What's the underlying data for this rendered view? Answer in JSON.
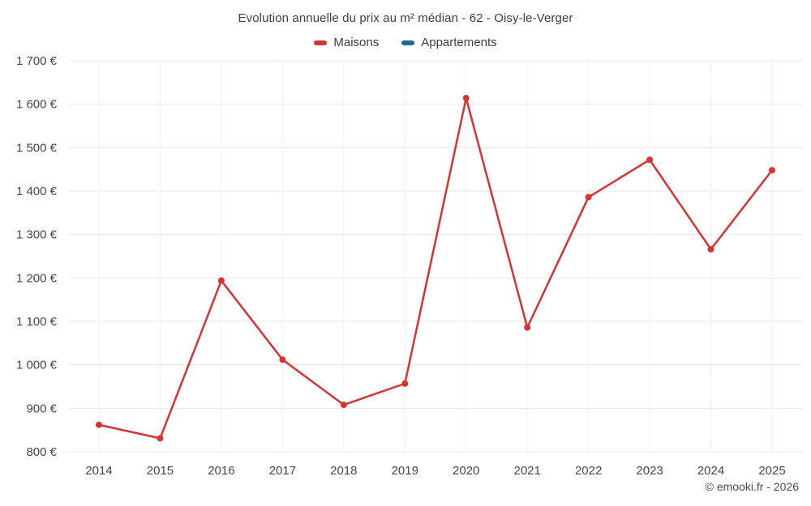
{
  "title": "Evolution annuelle du prix au m² médian - 62 - Oisy-le-Verger",
  "legend": [
    {
      "label": "Maisons",
      "color": "#d63333"
    },
    {
      "label": "Appartements",
      "color": "#166e96"
    }
  ],
  "copyright": "© emooki.fr - 2026",
  "chart_data": {
    "type": "line",
    "title": "Evolution annuelle du prix au m² médian - 62 - Oisy-le-Verger",
    "x": [
      "2014",
      "2015",
      "2016",
      "2017",
      "2018",
      "2019",
      "2020",
      "2021",
      "2022",
      "2023",
      "2024",
      "2025"
    ],
    "series": [
      {
        "name": "Maisons",
        "color": "#d63333",
        "values": [
          862,
          831,
          1194,
          1012,
          908,
          957,
          1614,
          1086,
          1386,
          1472,
          1266,
          1448
        ]
      },
      {
        "name": "Appartements",
        "color": "#166e96",
        "values": []
      }
    ],
    "ylim": [
      800,
      1700
    ],
    "ytick_step": 100,
    "ytick_labels": [
      "800 €",
      "900 €",
      "1 000 €",
      "1 100 €",
      "1 200 €",
      "1 300 €",
      "1 400 €",
      "1 500 €",
      "1 600 €",
      "1 700 €"
    ],
    "xlabel": "",
    "ylabel": "",
    "grid": true,
    "legend_position": "top"
  }
}
